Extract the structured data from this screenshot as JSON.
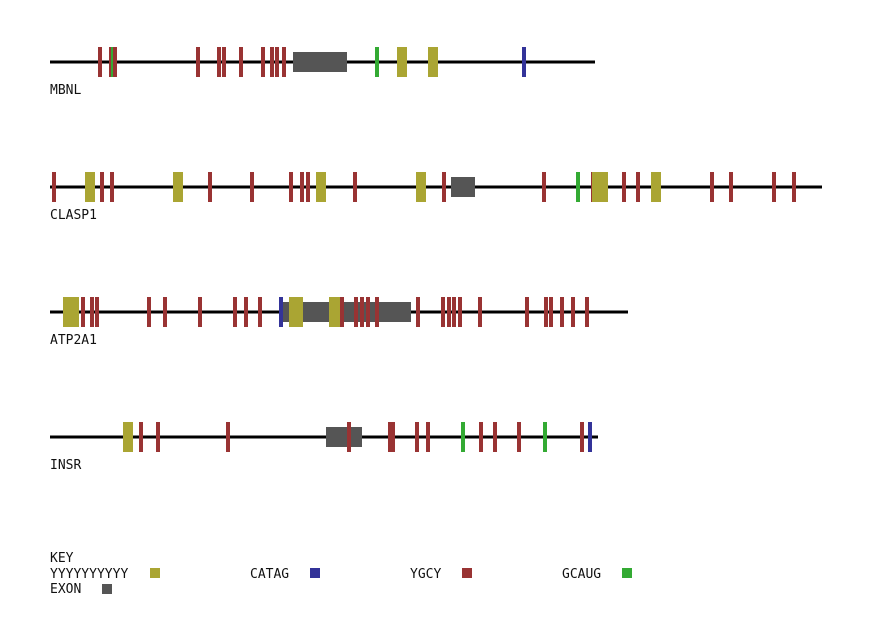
{
  "colors": {
    "polyY": "#aaa533",
    "catag": "#333399",
    "ygcy": "#993333",
    "gcaug": "#33aa33",
    "exon": "#555555",
    "line": "#000000"
  },
  "genes": [
    {
      "name": "MBNL",
      "length": 545,
      "exons": [
        {
          "start": 243,
          "end": 297
        }
      ],
      "motifs": [
        {
          "type": "ygcy",
          "pos": 50
        },
        {
          "type": "ygcy",
          "pos": 61
        },
        {
          "type": "gcaug",
          "pos": 63
        },
        {
          "type": "ygcy",
          "pos": 65
        },
        {
          "type": "ygcy",
          "pos": 148
        },
        {
          "type": "ygcy",
          "pos": 169
        },
        {
          "type": "ygcy",
          "pos": 174
        },
        {
          "type": "ygcy",
          "pos": 191
        },
        {
          "type": "ygcy",
          "pos": 213
        },
        {
          "type": "ygcy",
          "pos": 222
        },
        {
          "type": "ygcy",
          "pos": 227
        },
        {
          "type": "ygcy",
          "pos": 234
        },
        {
          "type": "gcaug",
          "pos": 327
        },
        {
          "type": "polyY",
          "pos": 352
        },
        {
          "type": "polyY",
          "pos": 383
        },
        {
          "type": "catag",
          "pos": 474
        }
      ]
    },
    {
      "name": "CLASP1",
      "length": 772,
      "exons": [
        {
          "start": 401,
          "end": 425
        }
      ],
      "motifs": [
        {
          "type": "ygcy",
          "pos": 4
        },
        {
          "type": "polyY",
          "pos": 40
        },
        {
          "type": "ygcy",
          "pos": 52
        },
        {
          "type": "ygcy",
          "pos": 62
        },
        {
          "type": "polyY",
          "pos": 128
        },
        {
          "type": "ygcy",
          "pos": 160
        },
        {
          "type": "ygcy",
          "pos": 202
        },
        {
          "type": "ygcy",
          "pos": 241
        },
        {
          "type": "ygcy",
          "pos": 252
        },
        {
          "type": "ygcy",
          "pos": 258
        },
        {
          "type": "polyY",
          "pos": 271
        },
        {
          "type": "ygcy",
          "pos": 305
        },
        {
          "type": "polyY",
          "pos": 371
        },
        {
          "type": "ygcy",
          "pos": 394
        },
        {
          "type": "ygcy",
          "pos": 494
        },
        {
          "type": "gcaug",
          "pos": 528
        },
        {
          "type": "ygcy",
          "pos": 543
        },
        {
          "type": "polyY",
          "pos": 547
        },
        {
          "type": "polyY",
          "pos": 553
        },
        {
          "type": "ygcy",
          "pos": 574
        },
        {
          "type": "ygcy",
          "pos": 588
        },
        {
          "type": "polyY",
          "pos": 606
        },
        {
          "type": "ygcy",
          "pos": 662
        },
        {
          "type": "ygcy",
          "pos": 681
        },
        {
          "type": "ygcy",
          "pos": 724
        },
        {
          "type": "ygcy",
          "pos": 744
        }
      ]
    },
    {
      "name": "ATP2A1",
      "length": 578,
      "exons": [
        {
          "start": 230,
          "end": 361
        }
      ],
      "motifs": [
        {
          "type": "polyY",
          "pos": 18
        },
        {
          "type": "polyY",
          "pos": 24
        },
        {
          "type": "ygcy",
          "pos": 33
        },
        {
          "type": "ygcy",
          "pos": 42
        },
        {
          "type": "ygcy",
          "pos": 47
        },
        {
          "type": "ygcy",
          "pos": 99
        },
        {
          "type": "ygcy",
          "pos": 115
        },
        {
          "type": "ygcy",
          "pos": 150
        },
        {
          "type": "ygcy",
          "pos": 185
        },
        {
          "type": "ygcy",
          "pos": 196
        },
        {
          "type": "ygcy",
          "pos": 210
        },
        {
          "type": "catag",
          "pos": 231
        },
        {
          "type": "polyY",
          "pos": 244
        },
        {
          "type": "polyY",
          "pos": 248
        },
        {
          "type": "polyY",
          "pos": 284
        },
        {
          "type": "polyY",
          "pos": 288
        },
        {
          "type": "ygcy",
          "pos": 292
        },
        {
          "type": "ygcy",
          "pos": 306
        },
        {
          "type": "ygcy",
          "pos": 312
        },
        {
          "type": "ygcy",
          "pos": 318
        },
        {
          "type": "ygcy",
          "pos": 327
        },
        {
          "type": "ygcy",
          "pos": 368
        },
        {
          "type": "ygcy",
          "pos": 393
        },
        {
          "type": "ygcy",
          "pos": 399
        },
        {
          "type": "ygcy",
          "pos": 404
        },
        {
          "type": "ygcy",
          "pos": 410
        },
        {
          "type": "ygcy",
          "pos": 430
        },
        {
          "type": "ygcy",
          "pos": 477
        },
        {
          "type": "ygcy",
          "pos": 496
        },
        {
          "type": "ygcy",
          "pos": 501
        },
        {
          "type": "ygcy",
          "pos": 512
        },
        {
          "type": "ygcy",
          "pos": 523
        },
        {
          "type": "ygcy",
          "pos": 537
        }
      ]
    },
    {
      "name": "INSR",
      "length": 548,
      "exons": [
        {
          "start": 276,
          "end": 312
        }
      ],
      "motifs": [
        {
          "type": "polyY",
          "pos": 78
        },
        {
          "type": "ygcy",
          "pos": 91
        },
        {
          "type": "ygcy",
          "pos": 108
        },
        {
          "type": "ygcy",
          "pos": 178
        },
        {
          "type": "ygcy",
          "pos": 299
        },
        {
          "type": "ygcy",
          "pos": 340
        },
        {
          "type": "ygcy",
          "pos": 343
        },
        {
          "type": "ygcy",
          "pos": 367
        },
        {
          "type": "ygcy",
          "pos": 378
        },
        {
          "type": "gcaug",
          "pos": 413
        },
        {
          "type": "ygcy",
          "pos": 431
        },
        {
          "type": "ygcy",
          "pos": 445
        },
        {
          "type": "ygcy",
          "pos": 469
        },
        {
          "type": "gcaug",
          "pos": 495
        },
        {
          "type": "ygcy",
          "pos": 532
        },
        {
          "type": "catag",
          "pos": 540
        }
      ]
    }
  ],
  "key": {
    "title": "KEY",
    "items": [
      {
        "type": "polyY",
        "label": "YYYYYYYYYY"
      },
      {
        "type": "catag",
        "label": "CATAG"
      },
      {
        "type": "ygcy",
        "label": "YGCY"
      },
      {
        "type": "gcaug",
        "label": "GCAUG"
      },
      {
        "type": "exon",
        "label": "EXON"
      }
    ]
  }
}
